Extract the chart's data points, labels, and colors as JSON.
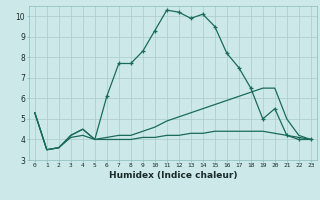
{
  "xlabel": "Humidex (Indice chaleur)",
  "bg_color": "#cce8e8",
  "grid_color": "#aacccc",
  "line_color": "#1a6b5a",
  "xlim": [
    -0.5,
    23.5
  ],
  "ylim": [
    3,
    10.5
  ],
  "yticks": [
    3,
    4,
    5,
    6,
    7,
    8,
    9,
    10
  ],
  "xticks": [
    0,
    1,
    2,
    3,
    4,
    5,
    6,
    7,
    8,
    9,
    10,
    11,
    12,
    13,
    14,
    15,
    16,
    17,
    18,
    19,
    20,
    21,
    22,
    23
  ],
  "series": [
    {
      "x": [
        0,
        1,
        2,
        3,
        4,
        5,
        6,
        7,
        8,
        9,
        10,
        11,
        12,
        13,
        14,
        15,
        16,
        17,
        18,
        19,
        20,
        21,
        22,
        23
      ],
      "y": [
        5.3,
        3.5,
        3.6,
        4.2,
        4.5,
        4.0,
        4.1,
        4.2,
        4.2,
        4.4,
        4.6,
        4.9,
        5.1,
        5.3,
        5.5,
        5.7,
        5.9,
        6.1,
        6.3,
        6.5,
        6.5,
        5.0,
        4.2,
        4.0
      ],
      "marker": false
    },
    {
      "x": [
        0,
        1,
        2,
        3,
        4,
        5,
        6,
        7,
        8,
        9,
        10,
        11,
        12,
        13,
        14,
        15,
        16,
        17,
        18,
        19,
        20,
        21,
        22,
        23
      ],
      "y": [
        5.3,
        3.5,
        3.6,
        4.1,
        4.2,
        4.0,
        4.0,
        4.0,
        4.0,
        4.1,
        4.1,
        4.2,
        4.2,
        4.3,
        4.3,
        4.4,
        4.4,
        4.4,
        4.4,
        4.4,
        4.3,
        4.2,
        4.1,
        4.0
      ],
      "marker": false
    },
    {
      "x": [
        0,
        1,
        2,
        3,
        4,
        5,
        6,
        7,
        8,
        9,
        10,
        11,
        12,
        13,
        14,
        15,
        16,
        17,
        18,
        19,
        20,
        21,
        22,
        23
      ],
      "y": [
        5.3,
        3.5,
        3.6,
        4.2,
        4.5,
        4.0,
        6.1,
        7.7,
        7.7,
        8.3,
        9.3,
        10.3,
        10.2,
        9.9,
        10.1,
        9.5,
        8.2,
        7.5,
        6.5,
        5.0,
        5.5,
        4.2,
        4.0,
        4.0
      ],
      "marker": true,
      "marker_start": 6
    }
  ]
}
